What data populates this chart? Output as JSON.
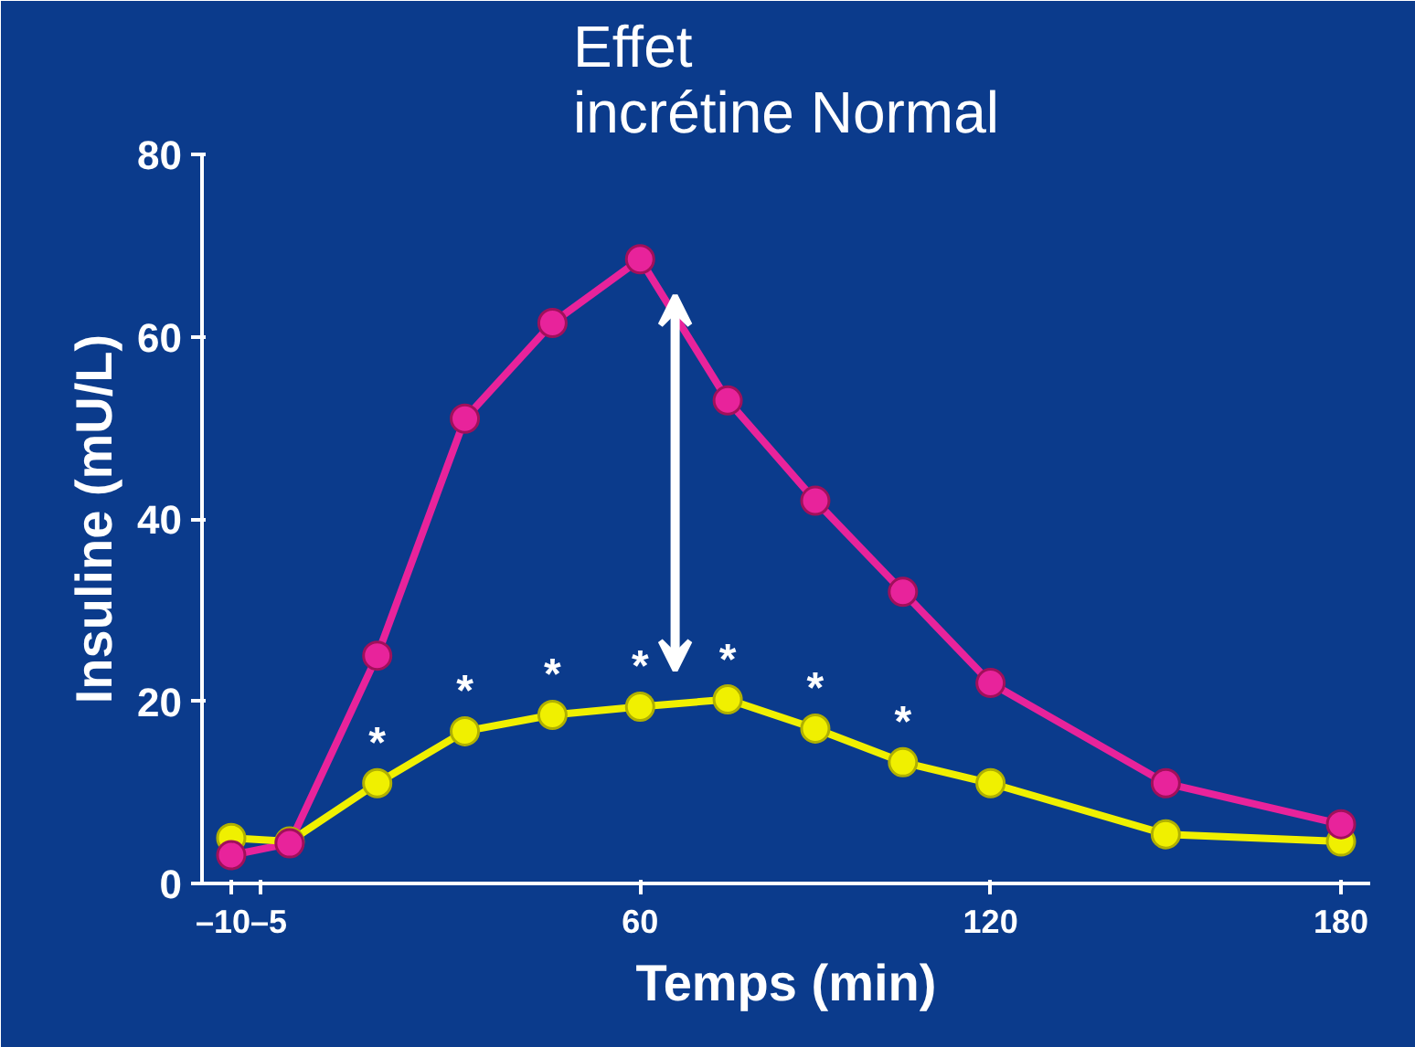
{
  "chart_data": {
    "type": "line",
    "title": "Effet\nincrétine Normal",
    "xlabel": "Temps (min)",
    "ylabel": "Insuline (mU/L)",
    "x": [
      -10,
      0,
      15,
      30,
      45,
      60,
      75,
      90,
      105,
      120,
      150,
      180
    ],
    "series": [
      {
        "color": "#e8239b",
        "values": [
          3.1,
          4.4,
          25,
          51,
          61.5,
          68.5,
          53,
          42,
          32,
          22,
          11,
          6.5
        ]
      },
      {
        "color": "#f0f000",
        "values": [
          5,
          4.6,
          11,
          16.7,
          18.5,
          19.4,
          20.2,
          17,
          13.3,
          11,
          5.4,
          4.6
        ]
      }
    ],
    "xlim": [
      -15,
      185
    ],
    "ylim": [
      0,
      80
    ],
    "xticks": [
      {
        "value": -10,
        "label": "–10"
      },
      {
        "value": -5,
        "label": "–5"
      },
      60,
      120,
      180
    ],
    "yticks": [
      0,
      20,
      40,
      60,
      80
    ],
    "annotations": [
      {
        "text": "*",
        "x": 15,
        "y": 11
      },
      {
        "text": "*",
        "x": 30,
        "y": 16.7
      },
      {
        "text": "*",
        "x": 45,
        "y": 18.5
      },
      {
        "text": "*",
        "x": 60,
        "y": 19.4
      },
      {
        "text": "*",
        "x": 75,
        "y": 20.2
      },
      {
        "text": "*",
        "x": 90,
        "y": 17
      },
      {
        "text": "*",
        "x": 105,
        "y": 13.3
      }
    ],
    "marker": "circle",
    "line_style": "solid"
  }
}
